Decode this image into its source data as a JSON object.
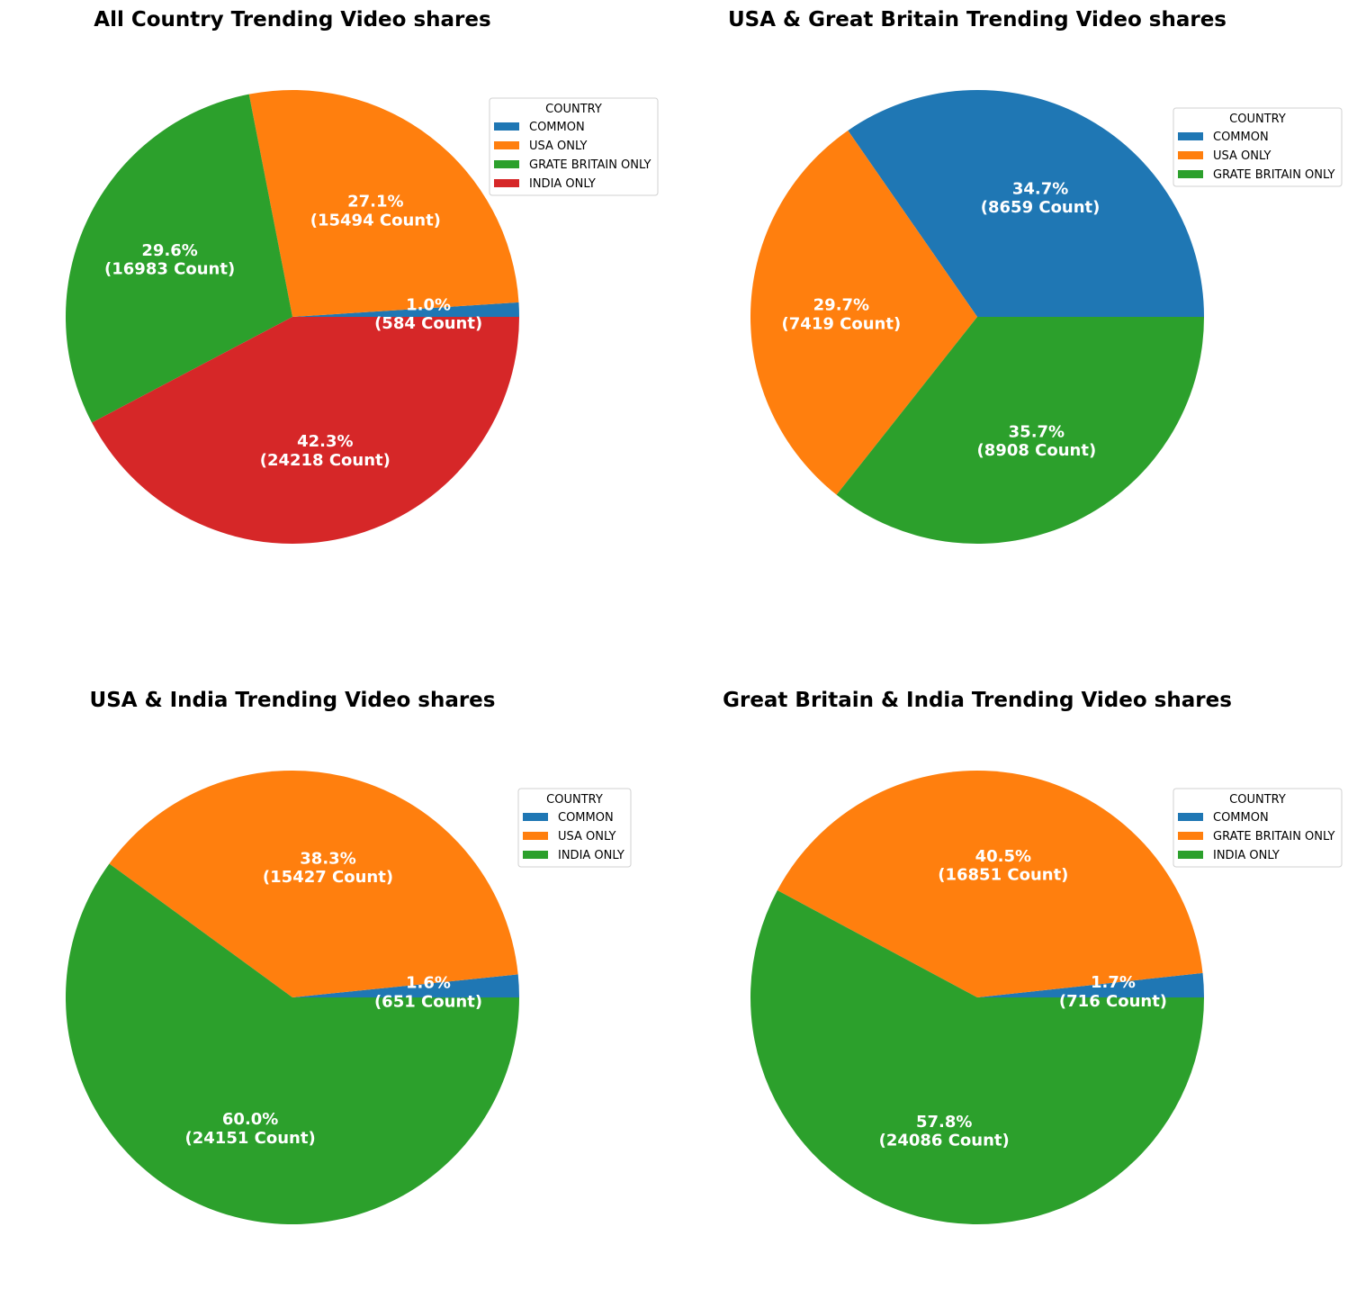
{
  "legend_title": "COUNTRY",
  "count_suffix": "Count",
  "chart_data": [
    {
      "type": "pie",
      "title": "All Country Trending Video shares",
      "legend_placement": "upper-right",
      "slices": [
        {
          "label": "COMMON",
          "value": 584,
          "percent": "1.0%",
          "color": "#1f77b4"
        },
        {
          "label": "USA ONLY",
          "value": 15494,
          "percent": "27.1%",
          "color": "#ff7f0e"
        },
        {
          "label": "GRATE BRITAIN ONLY",
          "value": 16983,
          "percent": "29.6%",
          "color": "#2ca02c"
        },
        {
          "label": "INDIA ONLY",
          "value": 24218,
          "percent": "42.3%",
          "color": "#d62728"
        }
      ]
    },
    {
      "type": "pie",
      "title": "USA & Great Britain Trending Video shares",
      "legend_placement": "upper-right",
      "slices": [
        {
          "label": "COMMON",
          "value": 8659,
          "percent": "34.7%",
          "color": "#1f77b4"
        },
        {
          "label": "USA ONLY",
          "value": 7419,
          "percent": "29.7%",
          "color": "#ff7f0e"
        },
        {
          "label": "GRATE BRITAIN ONLY",
          "value": 8908,
          "percent": "35.7%",
          "color": "#2ca02c"
        }
      ]
    },
    {
      "type": "pie",
      "title": "USA & India Trending Video shares",
      "legend_placement": "upper-right",
      "slices": [
        {
          "label": "COMMON",
          "value": 651,
          "percent": "1.6%",
          "color": "#1f77b4"
        },
        {
          "label": "USA ONLY",
          "value": 15427,
          "percent": "38.3%",
          "color": "#ff7f0e"
        },
        {
          "label": "INDIA ONLY",
          "value": 24151,
          "percent": "60.0%",
          "color": "#2ca02c"
        }
      ]
    },
    {
      "type": "pie",
      "title": "Great Britain & India Trending Video shares",
      "legend_placement": "upper-right",
      "slices": [
        {
          "label": "COMMON",
          "value": 716,
          "percent": "1.7%",
          "color": "#1f77b4"
        },
        {
          "label": "GRATE BRITAIN ONLY",
          "value": 16851,
          "percent": "40.5%",
          "color": "#ff7f0e"
        },
        {
          "label": "INDIA ONLY",
          "value": 24086,
          "percent": "57.8%",
          "color": "#2ca02c"
        }
      ]
    }
  ]
}
